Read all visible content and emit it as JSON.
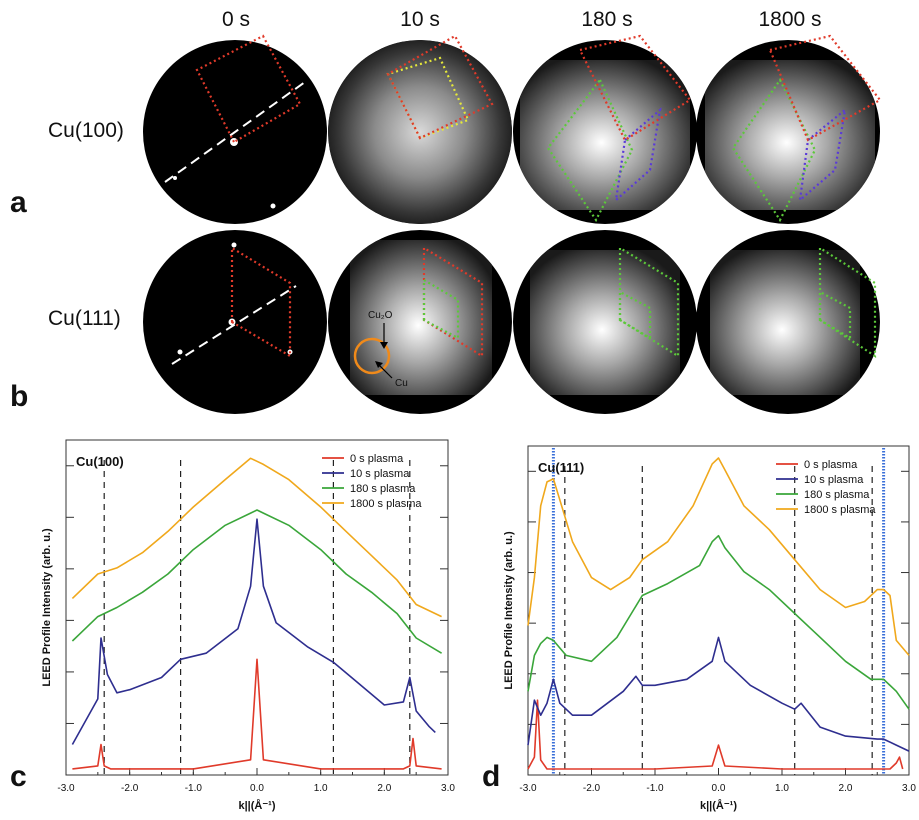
{
  "figure": {
    "time_labels": [
      "0 s",
      "10 s",
      "180 s",
      "1800 s"
    ],
    "row_labels": [
      "Cu(100)",
      "Cu(111)"
    ],
    "panel_letters": [
      "a",
      "b",
      "c",
      "d"
    ],
    "callouts": {
      "oxide": "Cu₂O",
      "metal": "Cu"
    }
  },
  "colors": {
    "0s": "#e03a2a",
    "10s": "#2e2e8f",
    "180s": "#3aa63a",
    "1800s": "#f0a81c",
    "callout_ring": "#f08a1a",
    "marker_blue": "#3a6fd8"
  },
  "chart_data": [
    {
      "type": "line",
      "panel": "c",
      "title": "Cu(100)",
      "xlabel": "k||(Å⁻¹)",
      "ylabel": "LEED Profile Intensity (arb. u.)",
      "xlim": [
        -3.0,
        3.0
      ],
      "x_ticks": [
        "-3.0",
        "-2.0",
        "-1.0",
        "0.0",
        "1.0",
        "2.0",
        "3.0"
      ],
      "y_ticks_labeled": false,
      "legend_position": "top-right",
      "vlines_dashed": [
        -2.4,
        -1.2,
        1.2,
        2.4
      ],
      "series": [
        {
          "name": "0 s plasma",
          "x": [
            -2.9,
            -2.5,
            -2.45,
            -2.4,
            -2.3,
            -1.0,
            -0.1,
            0.0,
            0.1,
            1.0,
            2.3,
            2.4,
            2.45,
            2.5,
            2.9
          ],
          "y": [
            0.02,
            0.03,
            0.1,
            0.03,
            0.02,
            0.02,
            0.05,
            0.38,
            0.05,
            0.02,
            0.02,
            0.03,
            0.12,
            0.03,
            0.02
          ]
        },
        {
          "name": "10 s plasma",
          "x": [
            -2.9,
            -2.5,
            -2.45,
            -2.35,
            -2.2,
            -2.0,
            -1.5,
            -1.2,
            -0.8,
            -0.3,
            -0.1,
            0.0,
            0.1,
            0.3,
            0.8,
            1.2,
            1.6,
            2.0,
            2.3,
            2.4,
            2.5,
            2.7,
            2.8
          ],
          "y": [
            0.1,
            0.25,
            0.45,
            0.33,
            0.27,
            0.28,
            0.32,
            0.38,
            0.4,
            0.48,
            0.62,
            0.84,
            0.62,
            0.5,
            0.42,
            0.37,
            0.3,
            0.23,
            0.24,
            0.32,
            0.21,
            0.16,
            0.14
          ]
        },
        {
          "name": "180 s plasma",
          "x": [
            -2.9,
            -2.5,
            -2.2,
            -1.8,
            -1.4,
            -1.0,
            -0.5,
            -0.1,
            0.0,
            0.1,
            0.5,
            1.0,
            1.4,
            1.8,
            2.2,
            2.5,
            2.9
          ],
          "y": [
            0.44,
            0.52,
            0.55,
            0.6,
            0.66,
            0.74,
            0.82,
            0.86,
            0.87,
            0.86,
            0.82,
            0.74,
            0.66,
            0.6,
            0.53,
            0.45,
            0.4
          ]
        },
        {
          "name": "1800 s plasma",
          "x": [
            -2.9,
            -2.5,
            -2.2,
            -1.8,
            -1.4,
            -1.0,
            -0.5,
            -0.1,
            0.0,
            0.1,
            0.5,
            1.0,
            1.4,
            1.8,
            2.2,
            2.5,
            2.9
          ],
          "y": [
            0.58,
            0.66,
            0.68,
            0.73,
            0.8,
            0.88,
            0.97,
            1.04,
            1.03,
            1.02,
            0.97,
            0.88,
            0.8,
            0.72,
            0.64,
            0.56,
            0.52
          ]
        }
      ]
    },
    {
      "type": "line",
      "panel": "d",
      "title": "Cu(111)",
      "xlabel": "k||(Å⁻¹)",
      "ylabel": "LEED Profile Intensity (arb. u.)",
      "xlim": [
        -3.0,
        3.0
      ],
      "x_ticks": [
        "-3.0",
        "-2.0",
        "-1.0",
        "0.0",
        "1.0",
        "2.0",
        "3.0"
      ],
      "y_ticks_labeled": false,
      "legend_position": "top-right",
      "vlines_dashed": [
        -2.42,
        -1.2,
        1.2,
        2.42
      ],
      "vlines_marker": [
        -2.6,
        2.6
      ],
      "series": [
        {
          "name": "0 s plasma",
          "x": [
            -3.0,
            -2.9,
            -2.85,
            -2.8,
            -2.7,
            -1.0,
            -0.1,
            0.0,
            0.1,
            1.0,
            2.7,
            2.8,
            2.85,
            2.9
          ],
          "y": [
            0.02,
            0.06,
            0.25,
            0.05,
            0.02,
            0.02,
            0.03,
            0.1,
            0.03,
            0.02,
            0.02,
            0.04,
            0.06,
            0.02
          ]
        },
        {
          "name": "10 s plasma",
          "x": [
            -3.0,
            -2.9,
            -2.8,
            -2.7,
            -2.6,
            -2.5,
            -2.3,
            -2.0,
            -1.5,
            -1.3,
            -1.2,
            -1.0,
            -0.5,
            -0.1,
            0.0,
            0.1,
            0.5,
            1.0,
            1.2,
            1.3,
            1.6,
            2.0,
            2.5,
            2.6,
            2.8,
            3.0
          ],
          "y": [
            0.1,
            0.25,
            0.2,
            0.24,
            0.32,
            0.24,
            0.2,
            0.2,
            0.28,
            0.33,
            0.3,
            0.3,
            0.32,
            0.38,
            0.46,
            0.38,
            0.3,
            0.24,
            0.22,
            0.24,
            0.16,
            0.13,
            0.12,
            0.12,
            0.1,
            0.08
          ]
        },
        {
          "name": "180 s plasma",
          "x": [
            -3.0,
            -2.9,
            -2.8,
            -2.7,
            -2.6,
            -2.4,
            -2.0,
            -1.6,
            -1.2,
            -0.8,
            -0.3,
            -0.1,
            0.0,
            0.1,
            0.4,
            0.8,
            1.2,
            1.5,
            2.0,
            2.4,
            2.6,
            2.8,
            3.0
          ],
          "y": [
            0.28,
            0.4,
            0.44,
            0.46,
            0.45,
            0.4,
            0.38,
            0.46,
            0.6,
            0.64,
            0.7,
            0.78,
            0.8,
            0.76,
            0.68,
            0.62,
            0.54,
            0.48,
            0.38,
            0.32,
            0.32,
            0.28,
            0.22
          ]
        },
        {
          "name": "1800 s plasma",
          "x": [
            -3.0,
            -2.9,
            -2.8,
            -2.7,
            -2.6,
            -2.5,
            -2.3,
            -2.0,
            -1.7,
            -1.4,
            -1.2,
            -0.8,
            -0.4,
            -0.1,
            0.0,
            0.1,
            0.4,
            0.8,
            1.2,
            1.6,
            2.0,
            2.3,
            2.5,
            2.6,
            2.7,
            2.8,
            3.0
          ],
          "y": [
            0.5,
            0.66,
            0.9,
            0.98,
            0.99,
            0.92,
            0.78,
            0.66,
            0.62,
            0.66,
            0.72,
            0.78,
            0.9,
            1.04,
            1.06,
            1.02,
            0.9,
            0.82,
            0.72,
            0.62,
            0.56,
            0.58,
            0.62,
            0.62,
            0.6,
            0.45,
            0.4
          ]
        }
      ]
    }
  ]
}
